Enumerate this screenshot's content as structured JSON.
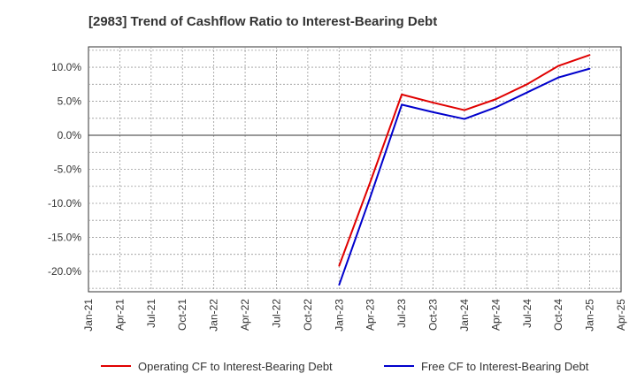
{
  "chart_data": {
    "type": "line",
    "title": "[2983]  Trend of Cashflow Ratio to Interest-Bearing Debt",
    "xlabel": "",
    "ylabel": "",
    "x_ticks": [
      "Jan-21",
      "Apr-21",
      "Jul-21",
      "Oct-21",
      "Jan-22",
      "Apr-22",
      "Jul-22",
      "Oct-22",
      "Jan-23",
      "Apr-23",
      "Jul-23",
      "Oct-23",
      "Jan-24",
      "Apr-24",
      "Jul-24",
      "Oct-24",
      "Jan-25",
      "Apr-25"
    ],
    "ylim": [
      -23.0,
      13.0
    ],
    "y_ticks": [
      10,
      5,
      0,
      -5,
      -10,
      -15,
      -20
    ],
    "y_tick_labels": [
      "10.0%",
      "5.0%",
      "0.0%",
      "-5.0%",
      "-10.0%",
      "-15.0%",
      "-20.0%"
    ],
    "grid": true,
    "legend_position": "bottom",
    "series": [
      {
        "name": "Operating CF to Interest-Bearing Debt",
        "color": "#e00000",
        "points": [
          {
            "x": "Jan-23",
            "y": -19.2
          },
          {
            "x": "Apr-23",
            "y": -6.8
          },
          {
            "x": "Jul-23",
            "y": 6.0
          },
          {
            "x": "Oct-23",
            "y": 4.8
          },
          {
            "x": "Jan-24",
            "y": 3.7
          },
          {
            "x": "Apr-24",
            "y": 5.3
          },
          {
            "x": "Jul-24",
            "y": 7.5
          },
          {
            "x": "Oct-24",
            "y": 10.2
          },
          {
            "x": "Jan-25",
            "y": 11.8
          }
        ]
      },
      {
        "name": "Free CF to Interest-Bearing Debt",
        "color": "#0000cc",
        "points": [
          {
            "x": "Jan-23",
            "y": -22.0
          },
          {
            "x": "Apr-23",
            "y": -9.0
          },
          {
            "x": "Jul-23",
            "y": 4.5
          },
          {
            "x": "Oct-23",
            "y": 3.4
          },
          {
            "x": "Jan-24",
            "y": 2.4
          },
          {
            "x": "Apr-24",
            "y": 4.1
          },
          {
            "x": "Jul-24",
            "y": 6.3
          },
          {
            "x": "Oct-24",
            "y": 8.5
          },
          {
            "x": "Jan-25",
            "y": 9.8
          }
        ]
      }
    ]
  }
}
